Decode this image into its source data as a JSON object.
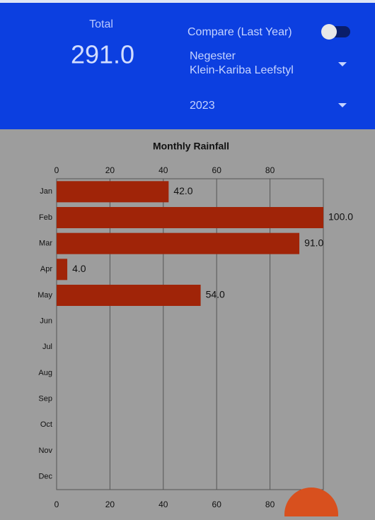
{
  "header": {
    "total_label": "Total",
    "total_value": "291.0",
    "compare_label": "Compare (Last Year)",
    "location": [
      "Negester",
      "Klein-Kariba Leefstyl"
    ],
    "year": "2023"
  },
  "chart_data": {
    "type": "bar",
    "orientation": "horizontal",
    "title": "Monthly Rainfall",
    "categories": [
      "Jan",
      "Feb",
      "Mar",
      "Apr",
      "May",
      "Jun",
      "Jul",
      "Aug",
      "Sep",
      "Oct",
      "Nov",
      "Dec"
    ],
    "values": [
      42,
      100,
      91,
      4,
      54,
      null,
      null,
      null,
      null,
      null,
      null,
      null
    ],
    "value_labels": [
      "42.0",
      "100.0",
      "91.0",
      "4.0",
      "54.0",
      null,
      null,
      null,
      null,
      null,
      null,
      null
    ],
    "color": "#a02408",
    "xlim": [
      0,
      100
    ],
    "xticks": [
      0,
      20,
      40,
      60,
      80
    ],
    "grid": true
  }
}
